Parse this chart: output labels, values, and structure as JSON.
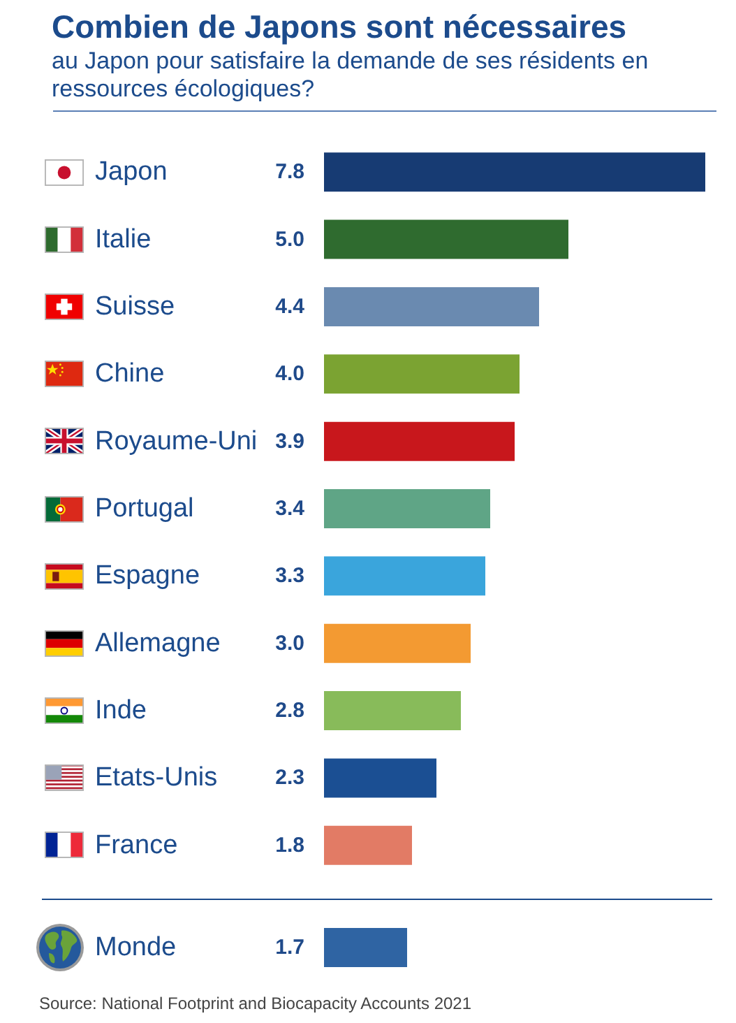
{
  "chart_data": [
    {
      "type": "bar",
      "orientation": "horizontal",
      "title": "Combien de Japons sont nécessaires",
      "subtitle": "au Japon pour satisfaire la demande de ses résidents en ressources écologiques?",
      "categories": [
        "Japon",
        "Italie",
        "Suisse",
        "Chine",
        "Royaume-Uni",
        "Portugal",
        "Espagne",
        "Allemagne",
        "Inde",
        "Etats-Unis",
        "France"
      ],
      "values": [
        7.8,
        5.0,
        4.4,
        4.0,
        3.9,
        3.4,
        3.3,
        3.0,
        2.8,
        2.3,
        1.8
      ],
      "value_labels": [
        "7.8",
        "5.0",
        "4.4",
        "4.0",
        "3.9",
        "3.4",
        "3.3",
        "3.0",
        "2.8",
        "2.3",
        "1.8"
      ],
      "colors": [
        "#173b73",
        "#2f6b2f",
        "#6a8ab0",
        "#7ba332",
        "#c8171c",
        "#5fa586",
        "#3aa5dc",
        "#f39a32",
        "#88bb5a",
        "#1b4f93",
        "#e27b65"
      ],
      "tick_labels": "y"
    },
    {
      "type": "bar",
      "orientation": "horizontal",
      "categories": [
        "Monde"
      ],
      "values": [
        1.7
      ],
      "value_labels": [
        "1.7"
      ],
      "colors": [
        "#2f64a3"
      ],
      "tick_labels": "y",
      "annotations": [
        "Source: National Footprint and Biocapacity Accounts 2021"
      ]
    }
  ]
}
